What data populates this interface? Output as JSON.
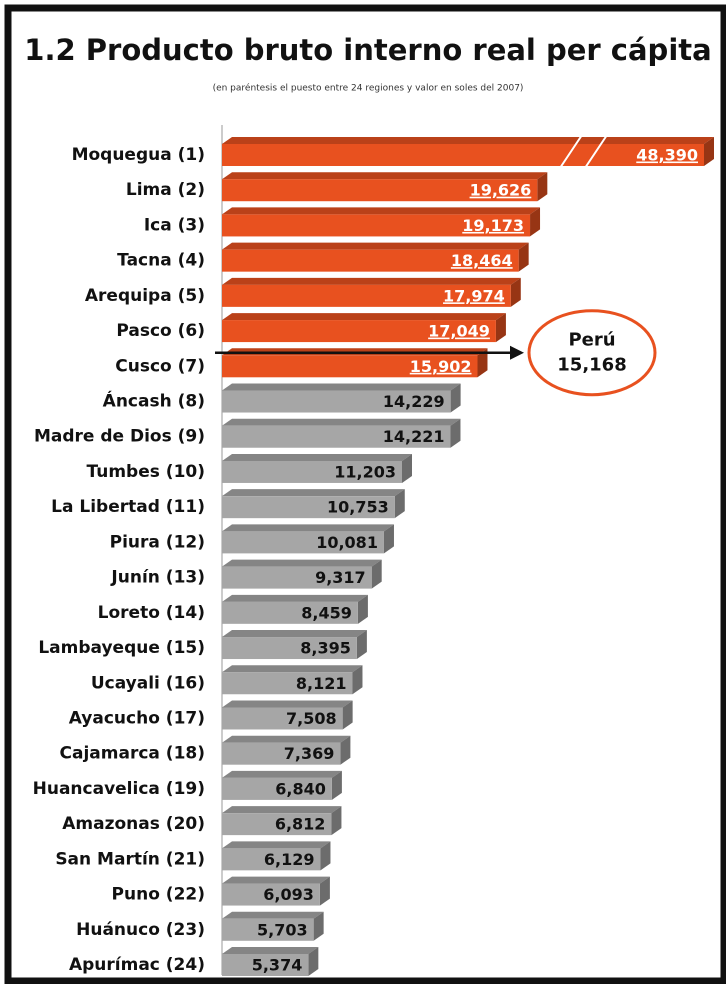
{
  "chart_data": {
    "type": "bar",
    "orientation": "horizontal",
    "title": "1.2 Producto bruto interno real per cápita",
    "subtitle": "(en paréntesis el puesto entre 24 regiones y valor en soles del 2007)",
    "categories": [
      "Moquegua (1)",
      "Lima (2)",
      "Ica (3)",
      "Tacna (4)",
      "Arequipa (5)",
      "Pasco (6)",
      "Cusco (7)",
      "Áncash (8)",
      "Madre de Dios (9)",
      "Tumbes (10)",
      "La Libertad (11)",
      "Piura (12)",
      "Junín (13)",
      "Loreto (14)",
      "Lambayeque (15)",
      "Ucayali (16)",
      "Ayacucho (17)",
      "Cajamarca (18)",
      "Huancavelica (19)",
      "Amazonas (20)",
      "San Martín (21)",
      "Puno (22)",
      "Huánuco (23)",
      "Apurímac (24)"
    ],
    "values": [
      48390,
      19626,
      19173,
      18464,
      17974,
      17049,
      15902,
      14229,
      14221,
      11203,
      10753,
      10081,
      9317,
      8459,
      8395,
      8121,
      7508,
      7369,
      6840,
      6812,
      6129,
      6093,
      5703,
      5374
    ],
    "value_labels": [
      "48,390",
      "19,626",
      "19,173",
      "18,464",
      "17,974",
      "17,049",
      "15,902",
      "14,229",
      "14,221",
      "11,203",
      "10,753",
      "10,081",
      "9,317",
      "8,459",
      "8,395",
      "8,121",
      "7,508",
      "7,369",
      "6,840",
      "6,812",
      "6,129",
      "6,093",
      "5,703",
      "5,374"
    ],
    "color": "#a6a6a6",
    "highlight_color": "#e8511f",
    "xlim": [
      0,
      30000
    ],
    "reference": {
      "label": "Perú",
      "value": 15168,
      "value_label": "15,168"
    }
  }
}
